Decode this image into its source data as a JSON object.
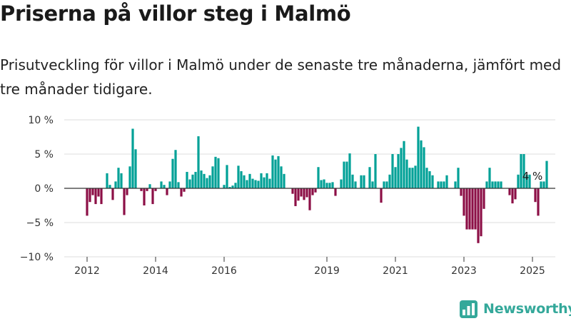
{
  "header": {
    "title": "Priserna på villor steg i Malmö",
    "subtitle": "Prisutveckling för villor i Malmö under de senaste tre månaderna, jämfört med tre månader tidigare."
  },
  "colors": {
    "positive": "#00a197",
    "negative": "#8c0f46",
    "grid": "#dddddd",
    "zero_line": "#333333",
    "brand": "#34a89a"
  },
  "brand": {
    "name": "Newsworthy",
    "icon": "bar-chart-logo-icon"
  },
  "chart_data": {
    "type": "bar",
    "title": "Priserna på villor steg i Malmö",
    "xlabel": "",
    "ylabel": "",
    "unit": "%",
    "ylim": [
      -10,
      10
    ],
    "y_ticks": [
      10,
      5,
      0,
      -5,
      -10
    ],
    "y_tick_labels": [
      "10 %",
      "5 %",
      "0 %",
      "−5 %",
      "−10 %"
    ],
    "x_ticks": [
      "2012",
      "2014",
      "2016",
      "2019",
      "2021",
      "2023",
      "2025"
    ],
    "x_tick_positions": [
      "2012-01",
      "2014-01",
      "2016-01",
      "2019-01",
      "2021-01",
      "2023-01",
      "2025-01"
    ],
    "start": "2012-01",
    "grid": true,
    "annotation": {
      "label": "4 %",
      "at": "2025-01"
    },
    "values": [
      -4,
      -2,
      -1,
      -2.3,
      -1.2,
      -2.3,
      0,
      2.2,
      0.5,
      -1.7,
      1,
      3,
      2.2,
      -3.9,
      -1,
      3.2,
      8.7,
      5.7,
      0,
      -0.4,
      -2.5,
      -0.4,
      0.6,
      -2.3,
      -0.4,
      0,
      1,
      0.5,
      -1,
      1,
      4.3,
      5.6,
      0.9,
      -1.2,
      -0.5,
      2.4,
      1.3,
      2,
      2.4,
      7.6,
      2.6,
      2.1,
      1.5,
      1.9,
      3.2,
      4.6,
      4.4,
      0,
      0.5,
      3.4,
      0.2,
      0.4,
      0.8,
      3.3,
      2.5,
      1.9,
      1.2,
      2.1,
      1.4,
      1.2,
      1.1,
      2.2,
      1.6,
      2.2,
      1.4,
      4.8,
      4.2,
      4.7,
      3.2,
      2.1,
      0,
      0,
      -0.8,
      -2.6,
      -1.8,
      -1.2,
      -1.7,
      -1.3,
      -3.2,
      -1,
      -0.6,
      3.1,
      1.2,
      1.3,
      0.8,
      0.8,
      0.9,
      -1.1,
      0,
      1.3,
      3.9,
      3.9,
      5.1,
      2,
      1,
      0,
      1.9,
      1.9,
      0,
      3.1,
      1,
      5,
      0,
      -2.1,
      1,
      1,
      2,
      5,
      3.1,
      5,
      5.9,
      6.9,
      4.2,
      3,
      3,
      3.3,
      9,
      7,
      6,
      3,
      2.5,
      1.9,
      0,
      1,
      1,
      1,
      1.9,
      0,
      0,
      1,
      3,
      -1.1,
      -4,
      -6,
      -6,
      -6,
      -6,
      -8,
      -7,
      -3,
      1,
      3,
      1,
      1,
      1,
      1,
      0,
      0,
      -1,
      -2.2,
      -1.6,
      2,
      5,
      5,
      2,
      2,
      0,
      -2,
      -4,
      1,
      1,
      4
    ]
  }
}
